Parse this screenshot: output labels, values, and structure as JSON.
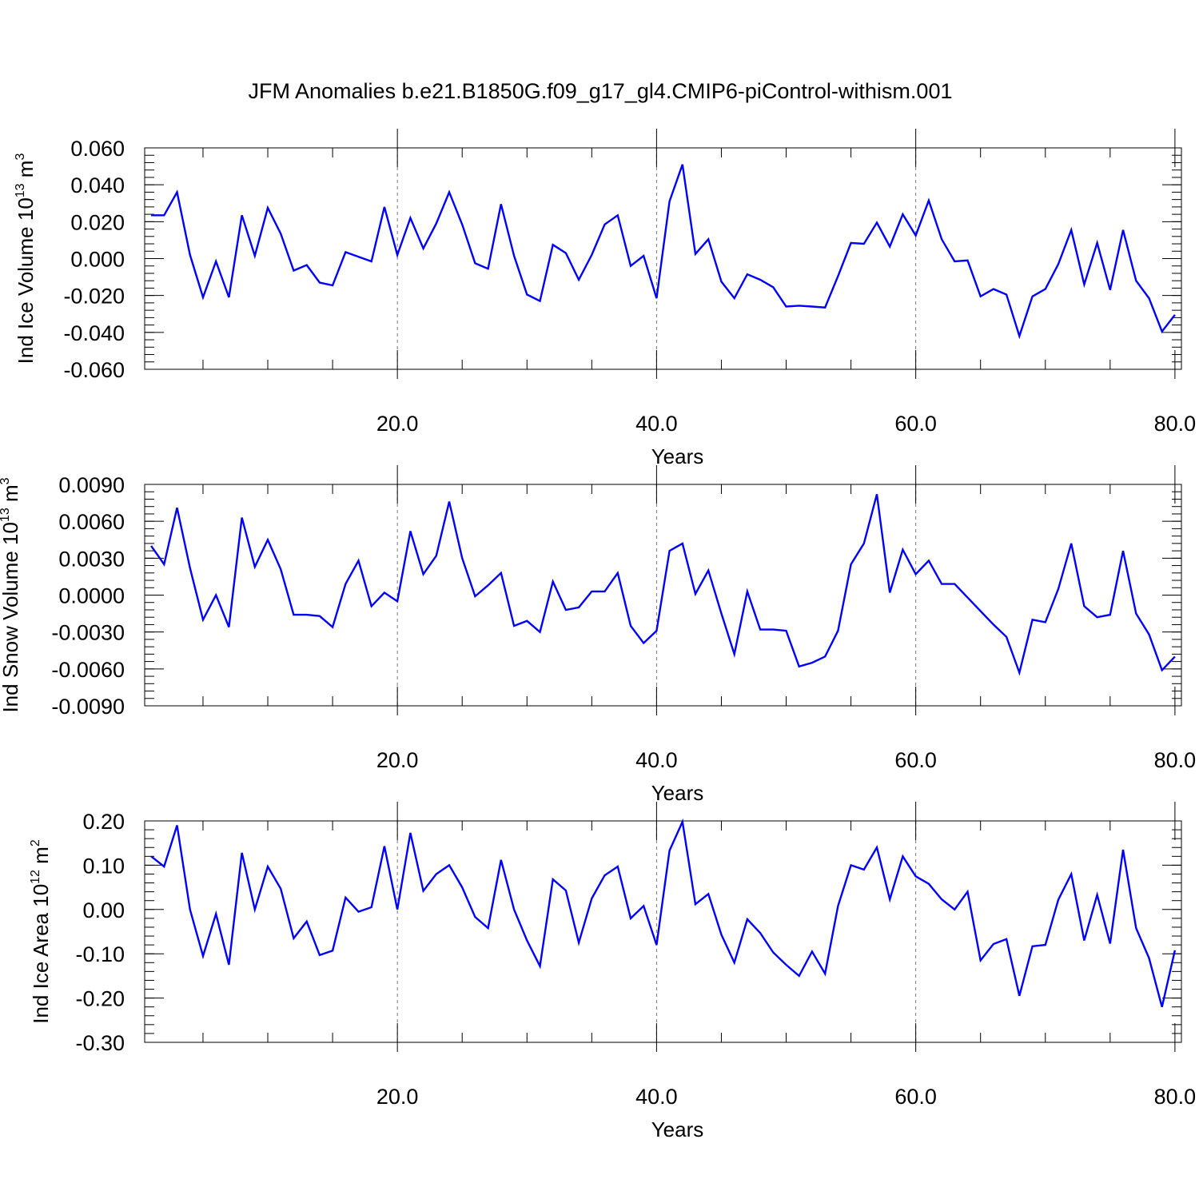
{
  "title": "JFM Anomalies b.e21.B1850G.f09_g17_gl4.CMIP6-piControl-withism.001",
  "line_color": "#0000ff",
  "chart_data": [
    {
      "type": "line",
      "ylabel_main": "Ind Ice Volume 10",
      "ylabel_exp": "13",
      "ylabel_unit": " m",
      "ylabel_unit_exp": "3",
      "xlabel": "Years",
      "xlim": [
        0.5,
        80.5
      ],
      "ylim": [
        -0.06,
        0.06
      ],
      "x_ticks": [
        20,
        40,
        60,
        80
      ],
      "x_tick_labels": [
        "20.0",
        "40.0",
        "60.0",
        "80.0"
      ],
      "y_ticks": [
        -0.06,
        -0.04,
        -0.02,
        0.0,
        0.02,
        0.04,
        0.06
      ],
      "y_tick_labels": [
        "-0.060",
        "-0.040",
        "-0.020",
        "0.000",
        "0.020",
        "0.040",
        "0.060"
      ],
      "grid": "vertical dashed at major x ticks",
      "x": [
        1,
        2,
        3,
        4,
        5,
        6,
        7,
        8,
        9,
        10,
        11,
        12,
        13,
        14,
        15,
        16,
        17,
        18,
        19,
        20,
        21,
        22,
        23,
        24,
        25,
        26,
        27,
        28,
        29,
        30,
        31,
        32,
        33,
        34,
        35,
        36,
        37,
        38,
        39,
        40,
        41,
        42,
        43,
        44,
        45,
        46,
        47,
        48,
        49,
        50,
        51,
        52,
        53,
        54,
        55,
        56,
        57,
        58,
        59,
        60,
        61,
        62,
        63,
        64,
        65,
        66,
        67,
        68,
        69,
        70,
        71,
        72,
        73,
        74,
        75,
        76,
        77,
        78,
        79,
        80
      ],
      "values": [
        0.0235,
        0.0235,
        0.036,
        0.002,
        -0.021,
        -0.0015,
        -0.021,
        0.0235,
        0.0015,
        0.0275,
        0.0135,
        -0.0065,
        -0.0035,
        -0.013,
        -0.0145,
        0.0035,
        0.001,
        -0.0015,
        0.028,
        0.002,
        0.022,
        0.0055,
        0.019,
        0.036,
        0.0185,
        -0.0025,
        -0.0055,
        0.0295,
        0.0015,
        -0.0195,
        -0.023,
        0.0075,
        0.003,
        -0.0115,
        0.002,
        0.0185,
        0.0235,
        -0.004,
        0.0015,
        -0.0215,
        0.031,
        0.051,
        0.0025,
        0.0105,
        -0.0125,
        -0.0215,
        -0.0085,
        -0.0115,
        -0.0155,
        -0.026,
        -0.0255,
        -0.026,
        -0.0265,
        -0.0095,
        0.0085,
        0.008,
        0.0195,
        0.0065,
        0.024,
        0.0125,
        0.0315,
        0.0105,
        -0.0015,
        -0.001,
        -0.0205,
        -0.0165,
        -0.0195,
        -0.042,
        -0.0205,
        -0.0165,
        -0.003,
        0.0155,
        -0.014,
        0.0085,
        -0.017,
        0.0155,
        -0.012,
        -0.0215,
        -0.0395,
        -0.0305
      ]
    },
    {
      "type": "line",
      "ylabel_main": "Ind Snow Volume 10",
      "ylabel_exp": "13",
      "ylabel_unit": " m",
      "ylabel_unit_exp": "3",
      "xlabel": "Years",
      "xlim": [
        0.5,
        80.5
      ],
      "ylim": [
        -0.009,
        0.009
      ],
      "x_ticks": [
        20,
        40,
        60,
        80
      ],
      "x_tick_labels": [
        "20.0",
        "40.0",
        "60.0",
        "80.0"
      ],
      "y_ticks": [
        -0.009,
        -0.006,
        -0.003,
        0.0,
        0.003,
        0.006,
        0.009
      ],
      "y_tick_labels": [
        "-0.0090",
        "-0.0060",
        "-0.0030",
        "0.0000",
        "0.0030",
        "0.0060",
        "0.0090"
      ],
      "grid": "vertical dashed at major x ticks",
      "x": [
        1,
        2,
        3,
        4,
        5,
        6,
        7,
        8,
        9,
        10,
        11,
        12,
        13,
        14,
        15,
        16,
        17,
        18,
        19,
        20,
        21,
        22,
        23,
        24,
        25,
        26,
        27,
        28,
        29,
        30,
        31,
        32,
        33,
        34,
        35,
        36,
        37,
        38,
        39,
        40,
        41,
        42,
        43,
        44,
        45,
        46,
        47,
        48,
        49,
        50,
        51,
        52,
        53,
        54,
        55,
        56,
        57,
        58,
        59,
        60,
        61,
        62,
        63,
        64,
        65,
        66,
        67,
        68,
        69,
        70,
        71,
        72,
        73,
        74,
        75,
        76,
        77,
        78,
        79,
        80
      ],
      "values": [
        0.004,
        0.0025,
        0.0071,
        0.0022,
        -0.002,
        0.0,
        -0.0026,
        0.0063,
        0.0023,
        0.0045,
        0.0021,
        -0.0016,
        -0.0016,
        -0.0017,
        -0.0026,
        0.0009,
        0.0028,
        -0.0009,
        0.0002,
        -0.0005,
        0.0052,
        0.0017,
        0.0032,
        0.0076,
        0.003,
        -0.0001,
        0.0008,
        0.0018,
        -0.0025,
        -0.0021,
        -0.003,
        0.0011,
        -0.0012,
        -0.001,
        0.0003,
        0.0003,
        0.0018,
        -0.0025,
        -0.0039,
        -0.0029,
        0.0036,
        0.0042,
        0.0001,
        0.002,
        -0.0015,
        -0.0048,
        0.0003,
        -0.0028,
        -0.0028,
        -0.0029,
        -0.0058,
        -0.0055,
        -0.005,
        -0.0029,
        0.0025,
        0.0042,
        0.0082,
        0.0002,
        0.0037,
        0.0017,
        0.0028,
        0.0009,
        0.0009,
        -0.0002,
        -0.0013,
        -0.0024,
        -0.0034,
        -0.0063,
        -0.002,
        -0.0022,
        0.0005,
        0.0042,
        -0.0009,
        -0.0018,
        -0.0016,
        0.0036,
        -0.0015,
        -0.0032,
        -0.0061,
        -0.005
      ]
    },
    {
      "type": "line",
      "ylabel_main": "Ind Ice Area 10",
      "ylabel_exp": "12",
      "ylabel_unit": " m",
      "ylabel_unit_exp": "2",
      "xlabel": "Years",
      "xlim": [
        0.5,
        80.5
      ],
      "ylim": [
        -0.3,
        0.2
      ],
      "x_ticks": [
        20,
        40,
        60,
        80
      ],
      "x_tick_labels": [
        "20.0",
        "40.0",
        "60.0",
        "80.0"
      ],
      "y_ticks": [
        -0.3,
        -0.2,
        -0.1,
        0.0,
        0.1,
        0.2
      ],
      "y_tick_labels": [
        "-0.30",
        "-0.20",
        "-0.10",
        "0.00",
        "0.10",
        "0.20"
      ],
      "grid": "vertical dashed at major x ticks",
      "x": [
        1,
        2,
        3,
        4,
        5,
        6,
        7,
        8,
        9,
        10,
        11,
        12,
        13,
        14,
        15,
        16,
        17,
        18,
        19,
        20,
        21,
        22,
        23,
        24,
        25,
        26,
        27,
        28,
        29,
        30,
        31,
        32,
        33,
        34,
        35,
        36,
        37,
        38,
        39,
        40,
        41,
        42,
        43,
        44,
        45,
        46,
        47,
        48,
        49,
        50,
        51,
        52,
        53,
        54,
        55,
        56,
        57,
        58,
        59,
        60,
        61,
        62,
        63,
        64,
        65,
        66,
        67,
        68,
        69,
        70,
        71,
        72,
        73,
        74,
        75,
        76,
        77,
        78,
        79,
        80
      ],
      "values": [
        0.12,
        0.097,
        0.19,
        0.0,
        -0.105,
        -0.01,
        -0.125,
        0.128,
        0.0,
        0.097,
        0.047,
        -0.065,
        -0.027,
        -0.103,
        -0.093,
        0.027,
        -0.005,
        0.005,
        0.143,
        0.0,
        0.173,
        0.042,
        0.08,
        0.1,
        0.05,
        -0.017,
        -0.042,
        0.112,
        0.0,
        -0.07,
        -0.128,
        0.068,
        0.043,
        -0.075,
        0.025,
        0.077,
        0.097,
        -0.02,
        0.008,
        -0.08,
        0.133,
        0.198,
        0.012,
        0.035,
        -0.057,
        -0.12,
        -0.022,
        -0.053,
        -0.097,
        -0.125,
        -0.15,
        -0.095,
        -0.145,
        0.008,
        0.1,
        0.09,
        0.14,
        0.023,
        0.12,
        0.075,
        0.058,
        0.023,
        0.0,
        0.04,
        -0.115,
        -0.078,
        -0.067,
        -0.195,
        -0.083,
        -0.08,
        0.022,
        0.08,
        -0.07,
        0.033,
        -0.077,
        0.135,
        -0.042,
        -0.11,
        -0.22,
        -0.092
      ]
    }
  ]
}
